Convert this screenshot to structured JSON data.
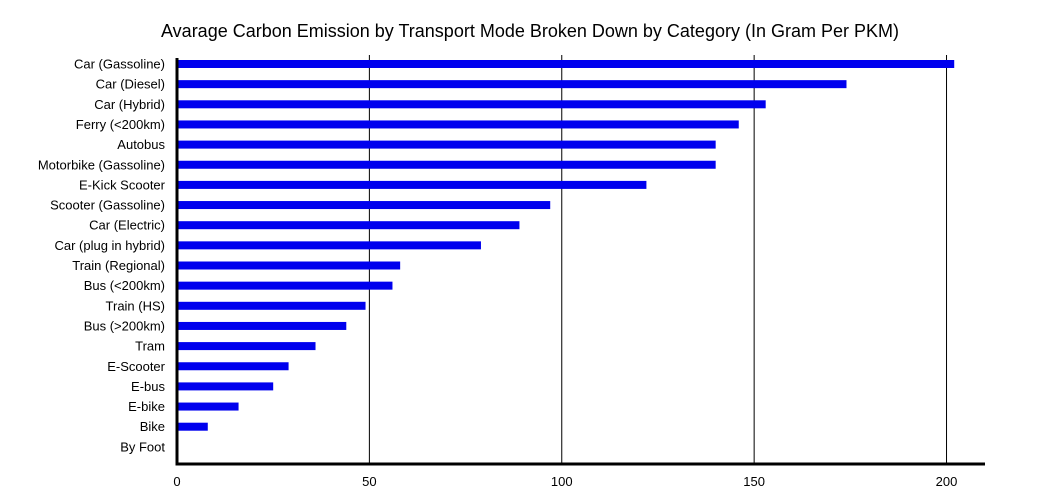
{
  "chart_data": {
    "type": "bar",
    "orientation": "horizontal",
    "title": "Avarage Carbon Emission by Transport Mode Broken Down by Category (In Gram Per PKM)",
    "xlabel": "",
    "ylabel": "",
    "categories": [
      "Car (Gassoline)",
      "Car (Diesel)",
      "Car (Hybrid)",
      "Ferry (<200km)",
      "Autobus",
      "Motorbike (Gassoline)",
      "E-Kick Scooter",
      "Scooter (Gassoline)",
      "Car (Electric)",
      "Car (plug in hybrid)",
      "Train (Regional)",
      "Bus (<200km)",
      "Train (HS)",
      "Bus (>200km)",
      "Tram",
      "E-Scooter",
      "E-bus",
      "E-bike",
      "Bike",
      "By Foot"
    ],
    "values": [
      202,
      174,
      153,
      146,
      140,
      140,
      122,
      97,
      89,
      79,
      58,
      56,
      49,
      44,
      36,
      29,
      25,
      16,
      8,
      0
    ],
    "xlim": [
      0,
      210
    ],
    "xticks": [
      0,
      50,
      100,
      150,
      200
    ],
    "grid": "vertical",
    "bar_color": "#0000ee",
    "legend": "none"
  }
}
